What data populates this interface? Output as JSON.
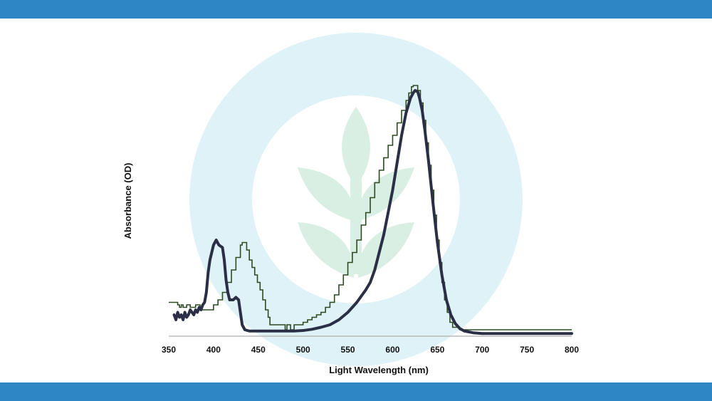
{
  "colors": {
    "band": "#2f86c4",
    "watermark_ring": "#dff2f7",
    "watermark_leaf": "#d9efe4",
    "axis": "#b9b9b9",
    "series_a": "#2a2f45",
    "series_b": "#2d4a22"
  },
  "watermark": {
    "icon": "leaf-sprout-icon"
  },
  "chart_data": {
    "type": "line",
    "title": "",
    "xlabel": "Light Wavelength (nm)",
    "ylabel": "Absorbance (OD)",
    "xlim": [
      350,
      800
    ],
    "ylim": [
      0,
      1.0
    ],
    "x_ticks": [
      "350",
      "400",
      "450",
      "500",
      "550",
      "600",
      "650",
      "700",
      "750",
      "800"
    ],
    "grid": false,
    "legend": "none",
    "series": [
      {
        "style": "thick-smooth",
        "points": [
          [
            356,
            0.08
          ],
          [
            358,
            0.06
          ],
          [
            360,
            0.09
          ],
          [
            362,
            0.07
          ],
          [
            364,
            0.08
          ],
          [
            366,
            0.06
          ],
          [
            368,
            0.09
          ],
          [
            370,
            0.07
          ],
          [
            372,
            0.08
          ],
          [
            374,
            0.1
          ],
          [
            376,
            0.09
          ],
          [
            378,
            0.08
          ],
          [
            380,
            0.1
          ],
          [
            382,
            0.09
          ],
          [
            384,
            0.11
          ],
          [
            386,
            0.1
          ],
          [
            388,
            0.12
          ],
          [
            390,
            0.13
          ],
          [
            392,
            0.17
          ],
          [
            394,
            0.25
          ],
          [
            396,
            0.3
          ],
          [
            398,
            0.33
          ],
          [
            400,
            0.36
          ],
          [
            403,
            0.38
          ],
          [
            406,
            0.36
          ],
          [
            410,
            0.35
          ],
          [
            412,
            0.3
          ],
          [
            414,
            0.22
          ],
          [
            416,
            0.17
          ],
          [
            418,
            0.14
          ],
          [
            422,
            0.14
          ],
          [
            425,
            0.15
          ],
          [
            428,
            0.14
          ],
          [
            430,
            0.09
          ],
          [
            432,
            0.04
          ],
          [
            435,
            0.02
          ],
          [
            440,
            0.015
          ],
          [
            450,
            0.015
          ],
          [
            460,
            0.015
          ],
          [
            470,
            0.015
          ],
          [
            480,
            0.015
          ],
          [
            490,
            0.015
          ],
          [
            500,
            0.017
          ],
          [
            510,
            0.022
          ],
          [
            520,
            0.03
          ],
          [
            530,
            0.04
          ],
          [
            540,
            0.06
          ],
          [
            550,
            0.09
          ],
          [
            560,
            0.13
          ],
          [
            570,
            0.18
          ],
          [
            575,
            0.21
          ],
          [
            580,
            0.26
          ],
          [
            585,
            0.33
          ],
          [
            590,
            0.4
          ],
          [
            595,
            0.49
          ],
          [
            600,
            0.58
          ],
          [
            605,
            0.69
          ],
          [
            610,
            0.8
          ],
          [
            615,
            0.89
          ],
          [
            620,
            0.95
          ],
          [
            623,
            0.97
          ],
          [
            625,
            0.98
          ],
          [
            628,
            0.975
          ],
          [
            630,
            0.95
          ],
          [
            633,
            0.9
          ],
          [
            636,
            0.82
          ],
          [
            640,
            0.7
          ],
          [
            645,
            0.53
          ],
          [
            650,
            0.37
          ],
          [
            655,
            0.24
          ],
          [
            660,
            0.14
          ],
          [
            665,
            0.08
          ],
          [
            670,
            0.045
          ],
          [
            675,
            0.025
          ],
          [
            680,
            0.015
          ],
          [
            690,
            0.008
          ],
          [
            700,
            0.005
          ],
          [
            720,
            0.005
          ],
          [
            750,
            0.005
          ],
          [
            780,
            0.005
          ],
          [
            800,
            0.005
          ]
        ]
      },
      {
        "style": "thin-stepped",
        "points": [
          [
            350,
            0.13
          ],
          [
            358,
            0.13
          ],
          [
            360,
            0.12
          ],
          [
            362,
            0.11
          ],
          [
            364,
            0.12
          ],
          [
            366,
            0.11
          ],
          [
            370,
            0.12
          ],
          [
            374,
            0.11
          ],
          [
            380,
            0.12
          ],
          [
            385,
            0.1
          ],
          [
            390,
            0.1
          ],
          [
            395,
            0.1
          ],
          [
            400,
            0.12
          ],
          [
            405,
            0.14
          ],
          [
            410,
            0.17
          ],
          [
            415,
            0.21
          ],
          [
            420,
            0.26
          ],
          [
            425,
            0.31
          ],
          [
            430,
            0.36
          ],
          [
            432,
            0.37
          ],
          [
            434,
            0.37
          ],
          [
            437,
            0.34
          ],
          [
            440,
            0.3
          ],
          [
            443,
            0.27
          ],
          [
            446,
            0.24
          ],
          [
            449,
            0.21
          ],
          [
            452,
            0.18
          ],
          [
            455,
            0.14
          ],
          [
            458,
            0.1
          ],
          [
            461,
            0.07
          ],
          [
            463,
            0.04
          ],
          [
            467,
            0.04
          ],
          [
            475,
            0.04
          ],
          [
            480,
            0.02
          ],
          [
            482,
            0.04
          ],
          [
            486,
            0.02
          ],
          [
            490,
            0.04
          ],
          [
            495,
            0.04
          ],
          [
            500,
            0.05
          ],
          [
            505,
            0.06
          ],
          [
            510,
            0.07
          ],
          [
            515,
            0.08
          ],
          [
            520,
            0.09
          ],
          [
            525,
            0.11
          ],
          [
            530,
            0.13
          ],
          [
            535,
            0.16
          ],
          [
            540,
            0.2
          ],
          [
            545,
            0.24
          ],
          [
            550,
            0.29
          ],
          [
            555,
            0.33
          ],
          [
            560,
            0.38
          ],
          [
            565,
            0.44
          ],
          [
            570,
            0.49
          ],
          [
            575,
            0.55
          ],
          [
            580,
            0.61
          ],
          [
            585,
            0.66
          ],
          [
            590,
            0.71
          ],
          [
            595,
            0.76
          ],
          [
            600,
            0.8
          ],
          [
            605,
            0.85
          ],
          [
            610,
            0.9
          ],
          [
            615,
            0.94
          ],
          [
            618,
            0.97
          ],
          [
            621,
            0.995
          ],
          [
            623,
            1.0
          ],
          [
            626,
            1.0
          ],
          [
            628,
            0.98
          ],
          [
            631,
            0.93
          ],
          [
            634,
            0.86
          ],
          [
            637,
            0.77
          ],
          [
            640,
            0.68
          ],
          [
            643,
            0.58
          ],
          [
            646,
            0.48
          ],
          [
            649,
            0.38
          ],
          [
            652,
            0.29
          ],
          [
            655,
            0.21
          ],
          [
            658,
            0.14
          ],
          [
            661,
            0.09
          ],
          [
            664,
            0.05
          ],
          [
            667,
            0.03
          ],
          [
            675,
            0.02
          ],
          [
            690,
            0.02
          ],
          [
            720,
            0.02
          ],
          [
            760,
            0.02
          ],
          [
            800,
            0.02
          ]
        ]
      }
    ]
  }
}
